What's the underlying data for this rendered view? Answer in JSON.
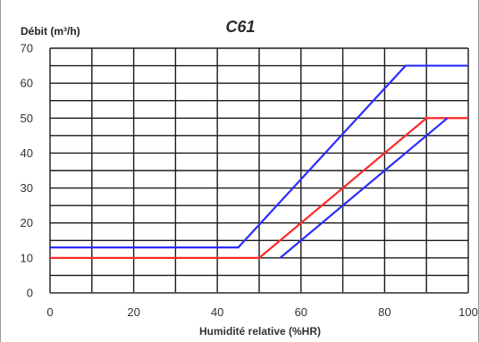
{
  "chart_data": {
    "type": "line",
    "title": "C61",
    "ylabel": "Débit (m³/h)",
    "xlabel": "Humidité relative (%HR)",
    "xlim": [
      0,
      100
    ],
    "ylim": [
      0,
      70
    ],
    "xticks": [
      "0",
      "20",
      "40",
      "60",
      "80",
      "100"
    ],
    "yticks": [
      "0",
      "10",
      "20",
      "30",
      "40",
      "50",
      "60",
      "70"
    ],
    "grid": true,
    "series": [
      {
        "color": "#2b2bff",
        "x": [
          0,
          45,
          85,
          100
        ],
        "y": [
          13,
          13,
          65,
          65
        ]
      },
      {
        "color": "#ff2a2a",
        "x": [
          0,
          50,
          90,
          100
        ],
        "y": [
          10,
          10,
          50,
          50
        ]
      },
      {
        "color": "#2b2bff",
        "x": [
          55,
          95
        ],
        "y": [
          10,
          50
        ]
      }
    ]
  },
  "colors": {
    "grid": "#1a1a1a",
    "axis": "#555555",
    "text": "#333333"
  }
}
